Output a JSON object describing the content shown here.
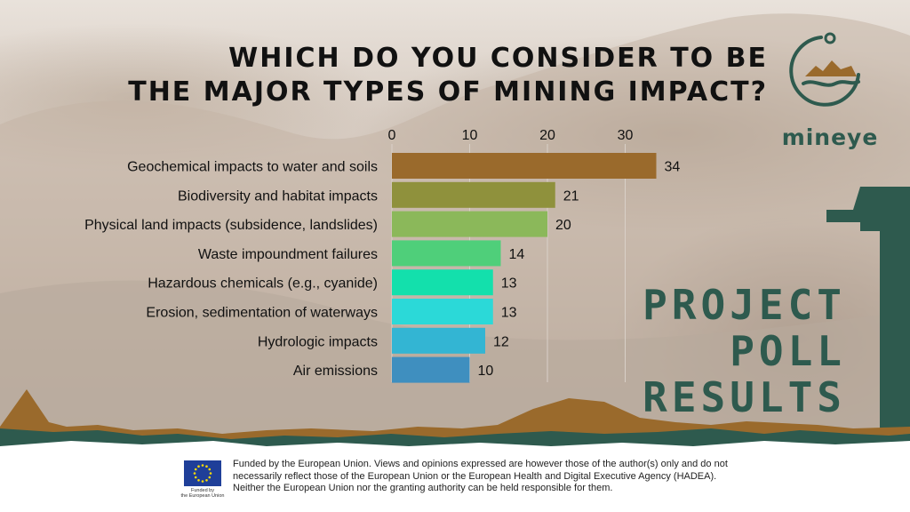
{
  "title": {
    "line1": "WHICH DO YOU CONSIDER TO BE",
    "line2": "THE MAJOR TYPES OF MINING IMPACT?"
  },
  "logo": {
    "word": "mineye"
  },
  "poll_label": {
    "line1": "PROJECT",
    "line2": "POLL",
    "line3": "RESULTS"
  },
  "footer": {
    "eu_label_line1": "Funded by",
    "eu_label_line2": "the European Union",
    "disclaimer": "Funded by the European Union. Views and opinions expressed are however those of the author(s) only and do not necessarily reflect those of the European Union or the European Health and Digital Executive Agency (HADEA). Neither the European Union nor the granting authority can be held responsible for them."
  },
  "colors": {
    "brand_green": "#2e5a4e",
    "brand_brown": "#9a6a2c"
  },
  "chart_data": {
    "type": "bar",
    "orientation": "horizontal",
    "title": "WHICH DO YOU CONSIDER TO BE THE MAJOR TYPES OF MINING IMPACT?",
    "xlabel": "",
    "ylabel": "",
    "xlim": [
      0,
      35
    ],
    "ticks": [
      0,
      10,
      20,
      30
    ],
    "tick_labels": [
      "0",
      "10",
      "20",
      "30"
    ],
    "grid": true,
    "categories": [
      "Geochemical impacts to water and soils",
      "Biodiversity and habitat impacts",
      "Physical land impacts (subsidence, landslides)",
      "Waste impoundment failures",
      "Hazardous chemicals (e.g., cyanide)",
      "Erosion, sedimentation of waterways",
      "Hydrologic impacts",
      "Air emissions"
    ],
    "values": [
      34,
      21,
      20,
      14,
      13,
      13,
      12,
      10
    ],
    "data_labels": [
      "34",
      "21",
      "20",
      "14",
      "13",
      "13",
      "12",
      "10"
    ],
    "bar_colors": [
      "#9a6a2c",
      "#8f913c",
      "#8bb85a",
      "#4fcf7a",
      "#13e0ac",
      "#2bd9d8",
      "#33b5d3",
      "#3f8fbf"
    ]
  }
}
